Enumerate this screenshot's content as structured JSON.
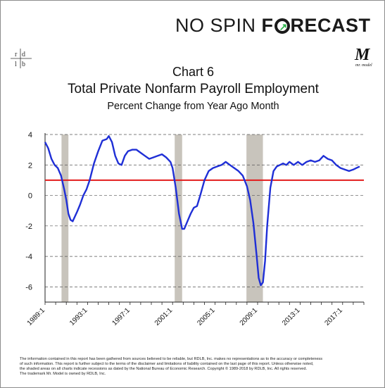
{
  "header": {
    "brand_prefix": "NO SPIN ",
    "brand_f": "F",
    "brand_rest": "RECAST",
    "left_logo": [
      "r",
      "d",
      "l",
      "b"
    ],
    "right_logo_mark": "M",
    "right_logo_text": "mr. model"
  },
  "footnote": {
    "lines": [
      "The information contained in this report has been gathered from sources believed to be reliable, but RDLB, Inc. makes no representations as to the accuracy or completeness",
      "of such information. This report is further subject to the terms of the disclaimer and limitations of liability contained on the last page of this report. Unless otherwise noted,",
      "the shaded areas on all charts indicate recessions as dated by the National Bureau of Economic Research. Copyright © 1989-2018 by RDLB, Inc. All rights reserved.",
      "The trademark Mr. Model is owned by RDLB, Inc."
    ]
  },
  "colors": {
    "series": "#1f2fd6",
    "reference_line": "#e31b1b",
    "recession": "#c8c4bc",
    "grid": "#555555"
  },
  "chart_data": {
    "type": "line",
    "title": "Chart 6",
    "subtitle": "Total Private Nonfarm Payroll Employment",
    "subtitle2": "Percent Change from Year Ago Month",
    "xlabel": "",
    "ylabel": "",
    "xlim": [
      1989.0,
      2019.0
    ],
    "ylim": [
      -7,
      4
    ],
    "yticks": [
      4,
      2,
      0,
      -2,
      -4,
      -6
    ],
    "ytick_labels": [
      "4",
      "2",
      "0",
      "-2",
      "-4",
      "-6"
    ],
    "xticks": [
      1989.0,
      1993.0,
      1997.0,
      2001.0,
      2005.0,
      2009.0,
      2013.0,
      2017.0
    ],
    "xtick_labels": [
      "1989:1",
      "1993:1",
      "1997:1",
      "2001:1",
      "2005:1",
      "2009:1",
      "2013:1",
      "2017:1"
    ],
    "grid": "horizontal dashed",
    "reference_line": {
      "y": 1.0
    },
    "recessions": [
      [
        1990.55,
        1991.2
      ],
      [
        2001.2,
        2001.9
      ],
      [
        2007.95,
        2009.5
      ]
    ],
    "series": [
      {
        "x": [
          1989.0,
          1989.3,
          1989.6,
          1989.9,
          1990.2,
          1990.5,
          1990.8,
          1991.0,
          1991.2,
          1991.4,
          1991.6,
          1991.8,
          1992.0,
          1992.3,
          1992.6,
          1992.9,
          1993.2,
          1993.6,
          1994.0,
          1994.4,
          1994.8,
          1995.0,
          1995.3,
          1995.6,
          1995.9,
          1996.2,
          1996.5,
          1996.8,
          1997.2,
          1997.6,
          1998.0,
          1998.4,
          1998.8,
          1999.2,
          1999.6,
          2000.0,
          2000.4,
          2000.8,
          2001.0,
          2001.3,
          2001.6,
          2001.9,
          2002.1,
          2002.4,
          2002.7,
          2003.0,
          2003.3,
          2003.6,
          2004.0,
          2004.4,
          2004.8,
          2005.2,
          2005.6,
          2006.0,
          2006.4,
          2006.8,
          2007.2,
          2007.6,
          2008.0,
          2008.3,
          2008.6,
          2008.9,
          2009.1,
          2009.3,
          2009.5,
          2009.7,
          2009.9,
          2010.2,
          2010.5,
          2010.8,
          2011.1,
          2011.4,
          2011.7,
          2012.0,
          2012.4,
          2012.8,
          2013.2,
          2013.6,
          2014.0,
          2014.4,
          2014.8,
          2015.2,
          2015.6,
          2016.0,
          2016.4,
          2016.8,
          2017.2,
          2017.6,
          2018.0,
          2018.3,
          2018.6
        ],
        "y": [
          3.5,
          3.1,
          2.4,
          2.0,
          1.8,
          1.3,
          0.4,
          -0.3,
          -1.2,
          -1.6,
          -1.7,
          -1.4,
          -1.1,
          -0.6,
          0.0,
          0.4,
          1.0,
          2.1,
          2.9,
          3.6,
          3.7,
          3.9,
          3.5,
          2.6,
          2.1,
          2.0,
          2.6,
          2.9,
          3.0,
          3.0,
          2.8,
          2.6,
          2.4,
          2.5,
          2.6,
          2.7,
          2.5,
          2.2,
          1.8,
          0.5,
          -1.2,
          -2.2,
          -2.2,
          -1.7,
          -1.2,
          -0.8,
          -0.7,
          0.0,
          1.0,
          1.6,
          1.8,
          1.9,
          2.0,
          2.2,
          2.0,
          1.8,
          1.6,
          1.3,
          0.6,
          -0.3,
          -1.8,
          -3.9,
          -5.4,
          -5.9,
          -5.7,
          -4.3,
          -2.0,
          0.5,
          1.6,
          1.9,
          2.0,
          2.1,
          2.0,
          2.2,
          2.0,
          2.2,
          2.0,
          2.2,
          2.3,
          2.2,
          2.3,
          2.6,
          2.4,
          2.3,
          2.0,
          1.8,
          1.7,
          1.6,
          1.7,
          1.8,
          1.9
        ]
      }
    ]
  }
}
